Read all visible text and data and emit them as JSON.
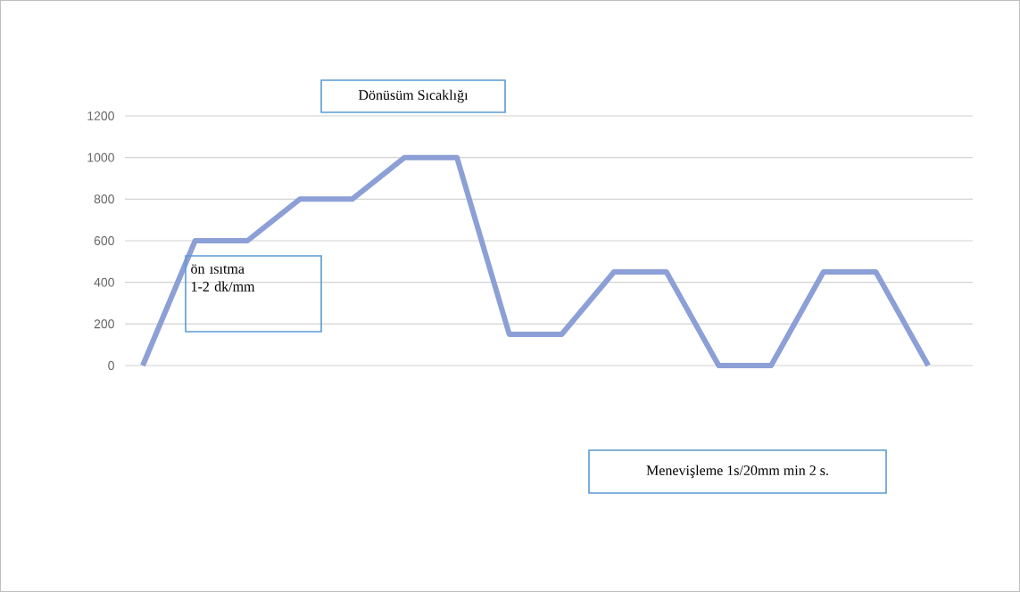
{
  "chart_data": {
    "type": "line",
    "categories": [
      null,
      null,
      null,
      null,
      null,
      null,
      null,
      null,
      null,
      null,
      null,
      null,
      null,
      null,
      null,
      null
    ],
    "series": [
      {
        "color": "#8c9fd6",
        "values": [
          0,
          600,
          600,
          800,
          800,
          1000,
          1000,
          150,
          150,
          450,
          450,
          0,
          0,
          450,
          450,
          0
        ]
      }
    ],
    "ylim": [
      0,
      1200
    ],
    "yticks": [
      0,
      200,
      400,
      600,
      800,
      1000,
      1200
    ],
    "grid": "y",
    "annotations": [
      "Dönüsüm Sıcaklığı",
      "ön ısıtma 1-2 dk/mm",
      "Menevişleme 1s/20mm min 2 s."
    ]
  }
}
